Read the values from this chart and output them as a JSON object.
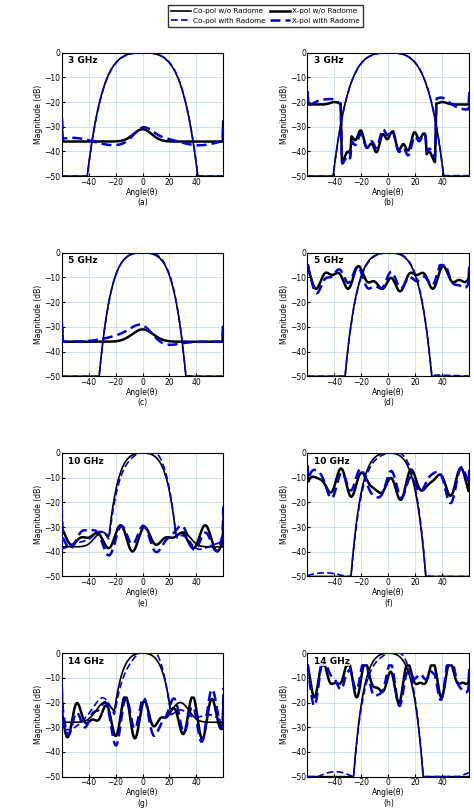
{
  "legend_labels": [
    "Co-pol w/o Radome",
    "Co-pol with Radome",
    "X-pol w/o Radome",
    "X-pol with Radome"
  ],
  "subplot_labels": [
    "(a)",
    "(b)",
    "(c)",
    "(d)",
    "(e)",
    "(f)",
    "(g)",
    "(h)"
  ],
  "freq_labels": [
    "3 GHz",
    "3 GHz",
    "5 GHz",
    "5 GHz",
    "10 GHz",
    "10 GHz",
    "14 GHz",
    "14 GHz"
  ],
  "xlabel": "Angle(θ)",
  "ylabel": "Magnitude (dB)",
  "xlim": [
    -60,
    60
  ],
  "ylim": [
    -50,
    0
  ],
  "xticks": [
    -40,
    -20,
    0,
    20,
    40
  ],
  "yticks": [
    -50,
    -40,
    -30,
    -20,
    -10,
    0
  ],
  "grid_color": "#b0c4de",
  "copol_color": "#000000",
  "xpol_color": "#000000",
  "radome_color": "#0000cc",
  "copol_lw": 1.2,
  "xpol_lw": 1.8,
  "radome_lw": 1.2,
  "xpol_radome_lw": 1.8
}
